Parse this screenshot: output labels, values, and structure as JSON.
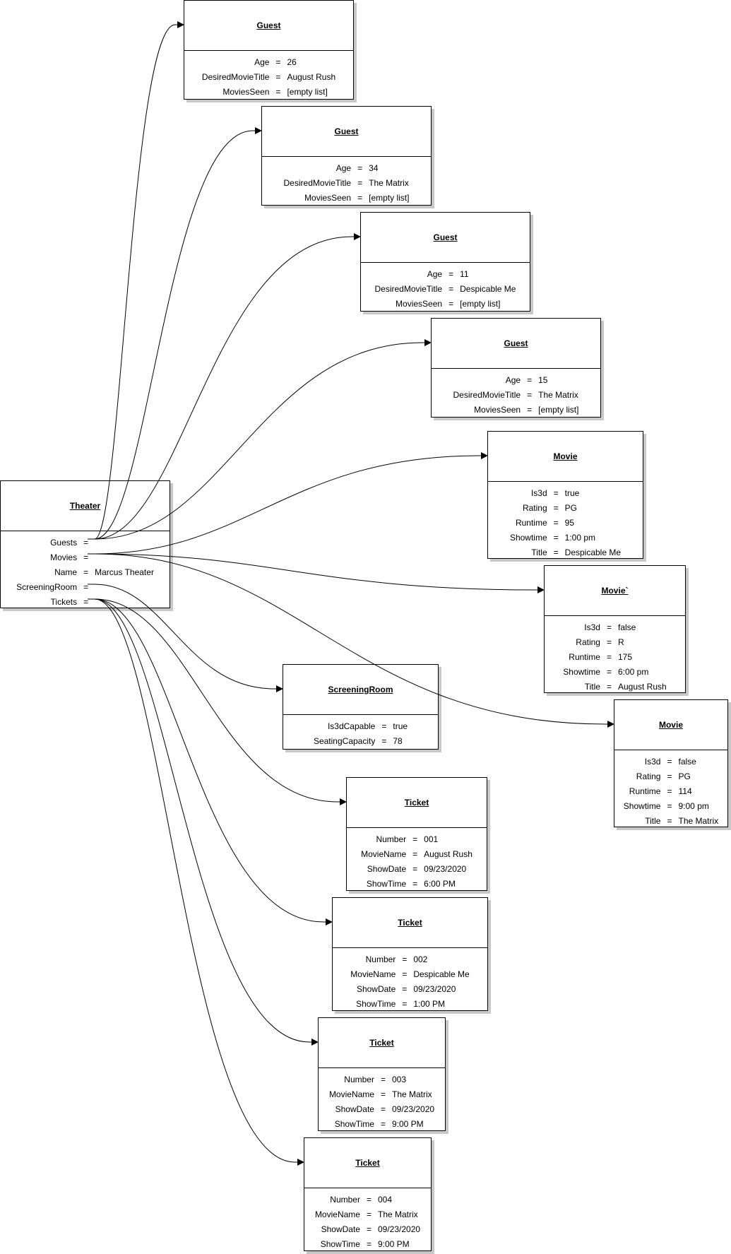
{
  "theater": {
    "title": "Theater",
    "attrs": [
      {
        "name": "Guests",
        "value": ""
      },
      {
        "name": "Movies",
        "value": ""
      },
      {
        "name": "Name",
        "value": "Marcus Theater"
      },
      {
        "name": "ScreeningRoom",
        "value": ""
      },
      {
        "name": "Tickets",
        "value": ""
      }
    ]
  },
  "boxes": [
    {
      "title": "Guest",
      "attrs": [
        {
          "name": "Age",
          "value": "26"
        },
        {
          "name": "DesiredMovieTitle",
          "value": "August Rush"
        },
        {
          "name": "MoviesSeen",
          "value": "[empty list]"
        }
      ]
    },
    {
      "title": "Guest",
      "attrs": [
        {
          "name": "Age",
          "value": "34"
        },
        {
          "name": "DesiredMovieTitle",
          "value": "The Matrix"
        },
        {
          "name": "MoviesSeen",
          "value": "[empty list]"
        }
      ]
    },
    {
      "title": "Guest",
      "attrs": [
        {
          "name": "Age",
          "value": "11"
        },
        {
          "name": "DesiredMovieTitle",
          "value": "Despicable Me"
        },
        {
          "name": "MoviesSeen",
          "value": "[empty list]"
        }
      ]
    },
    {
      "title": "Guest",
      "attrs": [
        {
          "name": "Age",
          "value": "15"
        },
        {
          "name": "DesiredMovieTitle",
          "value": "The Matrix"
        },
        {
          "name": "MoviesSeen",
          "value": "[empty list]"
        }
      ]
    },
    {
      "title": "Movie",
      "attrs": [
        {
          "name": "Is3d",
          "value": "true"
        },
        {
          "name": "Rating",
          "value": "PG"
        },
        {
          "name": "Runtime",
          "value": "95"
        },
        {
          "name": "Showtime",
          "value": "1:00 pm"
        },
        {
          "name": "Title",
          "value": "Despicable Me"
        }
      ]
    },
    {
      "title": "Movie`",
      "attrs": [
        {
          "name": "Is3d",
          "value": "false"
        },
        {
          "name": "Rating",
          "value": "R"
        },
        {
          "name": "Runtime",
          "value": "175"
        },
        {
          "name": "Showtime",
          "value": "6:00 pm"
        },
        {
          "name": "Title",
          "value": "August Rush"
        }
      ]
    },
    {
      "title": "ScreeningRoom",
      "attrs": [
        {
          "name": "Is3dCapable",
          "value": "true"
        },
        {
          "name": "SeatingCapacity",
          "value": "78"
        }
      ]
    },
    {
      "title": "Movie",
      "attrs": [
        {
          "name": "Is3d",
          "value": "false"
        },
        {
          "name": "Rating",
          "value": "PG"
        },
        {
          "name": "Runtime",
          "value": "114"
        },
        {
          "name": "Showtime",
          "value": "9:00 pm"
        },
        {
          "name": "Title",
          "value": "The Matrix"
        }
      ]
    },
    {
      "title": "Ticket",
      "attrs": [
        {
          "name": "Number",
          "value": "001"
        },
        {
          "name": "MovieName",
          "value": "August Rush"
        },
        {
          "name": "ShowDate",
          "value": "09/23/2020"
        },
        {
          "name": "ShowTime",
          "value": "6:00 PM"
        }
      ]
    },
    {
      "title": "Ticket",
      "attrs": [
        {
          "name": "Number",
          "value": "002"
        },
        {
          "name": "MovieName",
          "value": "Despicable Me"
        },
        {
          "name": "ShowDate",
          "value": "09/23/2020"
        },
        {
          "name": "ShowTime",
          "value": "1:00 PM"
        }
      ]
    },
    {
      "title": "Ticket",
      "attrs": [
        {
          "name": "Number",
          "value": "003"
        },
        {
          "name": "MovieName",
          "value": "The Matrix"
        },
        {
          "name": "ShowDate",
          "value": "09/23/2020"
        },
        {
          "name": "ShowTime",
          "value": "9:00 PM"
        }
      ]
    },
    {
      "title": "Ticket",
      "attrs": [
        {
          "name": "Number",
          "value": "004"
        },
        {
          "name": "MovieName",
          "value": "The Matrix"
        },
        {
          "name": "ShowDate",
          "value": "09/23/2020"
        },
        {
          "name": "ShowTime",
          "value": "9:00 PM"
        }
      ]
    }
  ],
  "symbols": {
    "equals": "="
  }
}
